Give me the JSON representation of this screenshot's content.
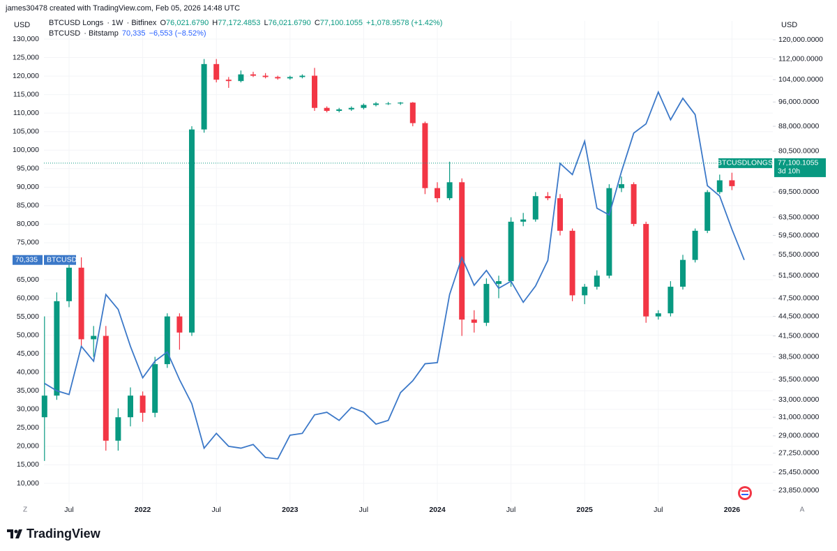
{
  "header": "james30478 created with TradingView.com, Feb 05, 2026 14:48 UTC",
  "brand": "TradingView",
  "ui": {
    "left_button": "Z",
    "right_button": "A"
  },
  "chart_data": {
    "type": "candlestick",
    "x": [
      "2021-05",
      "2021-06",
      "2021-07",
      "2021-08",
      "2021-09",
      "2021-10",
      "2021-11",
      "2021-12",
      "2022-01",
      "2022-02",
      "2022-03",
      "2022-04",
      "2022-05",
      "2022-06",
      "2022-07",
      "2022-08",
      "2022-09",
      "2022-10",
      "2022-11",
      "2022-12",
      "2023-01",
      "2023-02",
      "2023-03",
      "2023-04",
      "2023-05",
      "2023-06",
      "2023-07",
      "2023-08",
      "2023-09",
      "2023-10",
      "2023-11",
      "2023-12",
      "2024-01",
      "2024-02",
      "2024-03",
      "2024-04",
      "2024-05",
      "2024-06",
      "2024-07",
      "2024-08",
      "2024-09",
      "2024-10",
      "2024-11",
      "2024-12",
      "2025-01",
      "2025-02",
      "2025-03",
      "2025-04",
      "2025-05",
      "2025-06",
      "2025-07",
      "2025-08",
      "2025-09",
      "2025-10",
      "2025-11",
      "2025-12",
      "2026-01",
      "2026-02"
    ],
    "xticks": [
      {
        "value": "2021-07",
        "label": "Jul"
      },
      {
        "value": "2022-01",
        "label": "2022"
      },
      {
        "value": "2022-07",
        "label": "Jul"
      },
      {
        "value": "2023-01",
        "label": "2023"
      },
      {
        "value": "2023-07",
        "label": "Jul"
      },
      {
        "value": "2024-01",
        "label": "2024"
      },
      {
        "value": "2024-07",
        "label": "Jul"
      },
      {
        "value": "2025-01",
        "label": "2025"
      },
      {
        "value": "2025-07",
        "label": "Jul"
      },
      {
        "value": "2026-01",
        "label": "2026"
      }
    ],
    "ylabel": "USD",
    "y2label": "USD",
    "ylim": [
      4913,
      134900
    ],
    "yticks": [
      {
        "value": 10000,
        "label": "10,000"
      },
      {
        "value": 15000,
        "label": "15,000"
      },
      {
        "value": 20000,
        "label": "20,000"
      },
      {
        "value": 25000,
        "label": "25,000"
      },
      {
        "value": 30000,
        "label": "30,000"
      },
      {
        "value": 35000,
        "label": "35,000"
      },
      {
        "value": 40000,
        "label": "40,000"
      },
      {
        "value": 45000,
        "label": "45,000"
      },
      {
        "value": 50000,
        "label": "50,000"
      },
      {
        "value": 55000,
        "label": "55,000"
      },
      {
        "value": 60000,
        "label": "60,000"
      },
      {
        "value": 65000,
        "label": "65,000"
      },
      {
        "value": 75000,
        "label": "75,000"
      },
      {
        "value": 80000,
        "label": "80,000"
      },
      {
        "value": 85000,
        "label": "85,000"
      },
      {
        "value": 90000,
        "label": "90,000"
      },
      {
        "value": 95000,
        "label": "95,000"
      },
      {
        "value": 100000,
        "label": "100,000"
      },
      {
        "value": 105000,
        "label": "105,000"
      },
      {
        "value": 110000,
        "label": "110,000"
      },
      {
        "value": 115000,
        "label": "115,000"
      },
      {
        "value": 120000,
        "label": "120,000"
      },
      {
        "value": 125000,
        "label": "125,000"
      },
      {
        "value": 130000,
        "label": "130,000"
      }
    ],
    "y2lim": [
      22860,
      128400
    ],
    "y2_scale": "log",
    "y2ticks": [
      {
        "value": 23850,
        "label": "23,850.0000"
      },
      {
        "value": 25450,
        "label": "25,450.0000"
      },
      {
        "value": 27250,
        "label": "27,250.0000"
      },
      {
        "value": 29000,
        "label": "29,000.0000"
      },
      {
        "value": 31000,
        "label": "31,000.0000"
      },
      {
        "value": 33000,
        "label": "33,000.0000"
      },
      {
        "value": 35500,
        "label": "35,500.0000"
      },
      {
        "value": 38500,
        "label": "38,500.0000"
      },
      {
        "value": 41500,
        "label": "41,500.0000"
      },
      {
        "value": 44500,
        "label": "44,500.0000"
      },
      {
        "value": 47500,
        "label": "47,500.0000"
      },
      {
        "value": 51500,
        "label": "51,500.0000"
      },
      {
        "value": 55500,
        "label": "55,500.0000"
      },
      {
        "value": 59500,
        "label": "59,500.0000"
      },
      {
        "value": 63500,
        "label": "63,500.0000"
      },
      {
        "value": 69500,
        "label": "69,500.0000"
      },
      {
        "value": 80500,
        "label": "80,500.0000"
      },
      {
        "value": 88000,
        "label": "88,000.0000"
      },
      {
        "value": 96000,
        "label": "96,000.0000"
      },
      {
        "value": 104000,
        "label": "104,000.0000"
      },
      {
        "value": 112000,
        "label": "112,000.0000"
      },
      {
        "value": 120000,
        "label": "120,000.0000"
      }
    ],
    "grid": true,
    "series": [
      {
        "name": "BTCUSD Longs",
        "type": "candlestick",
        "axis": "y2",
        "interval": "1W",
        "exchange": "Bitfinex",
        "up_color": "#089981",
        "down_color": "#f23645",
        "open": [
          31000,
          33500,
          47000,
          53000,
          41000,
          41500,
          28500,
          31000,
          33500,
          31500,
          37500,
          44500,
          42000,
          87000,
          110000,
          104000,
          103500,
          106000,
          105500,
          105000,
          104500,
          105000,
          105500,
          94000,
          93000,
          93500,
          94000,
          95000,
          95500,
          95500,
          95800,
          89000,
          70500,
          68000,
          72000,
          44000,
          43500,
          50000,
          50500,
          62500,
          63000,
          68500,
          68000,
          60500,
          48000,
          49500,
          51500,
          70500,
          71500,
          62000,
          44500,
          45000,
          49500,
          54500,
          60500,
          69500,
          72500,
          76021.679
        ],
        "high": [
          44500,
          48500,
          54500,
          55000,
          43000,
          43000,
          32000,
          34500,
          34000,
          38500,
          45000,
          45000,
          88000,
          112000,
          112000,
          105000,
          107500,
          107000,
          106500,
          105500,
          105500,
          106000,
          108500,
          94500,
          94000,
          94500,
          95500,
          96000,
          96000,
          96000,
          96000,
          89500,
          72000,
          77500,
          73000,
          45500,
          51000,
          51500,
          63500,
          64500,
          69500,
          69500,
          69000,
          61000,
          50000,
          52500,
          71500,
          73500,
          72000,
          62500,
          45500,
          50500,
          55500,
          61000,
          70000,
          74000,
          74500,
          77172.4853
        ],
        "low": [
          26500,
          33000,
          46000,
          40000,
          38500,
          27500,
          27500,
          30000,
          30500,
          31000,
          37000,
          39500,
          41500,
          86000,
          103000,
          101000,
          103000,
          105000,
          104500,
          104000,
          104000,
          104500,
          93000,
          92500,
          92500,
          93000,
          93500,
          94500,
          95000,
          95000,
          88000,
          69000,
          67000,
          67500,
          41500,
          42000,
          43000,
          47500,
          49500,
          61500,
          62500,
          67500,
          59500,
          47000,
          46500,
          49000,
          51000,
          69500,
          61500,
          43500,
          44000,
          44500,
          49000,
          54000,
          60000,
          69000,
          70000,
          76021.679
        ],
        "close": [
          33500,
          47000,
          53000,
          41000,
          41500,
          28500,
          31000,
          33500,
          31500,
          37500,
          44500,
          42000,
          87000,
          110000,
          104000,
          103500,
          106000,
          105500,
          105000,
          104500,
          105000,
          105500,
          94000,
          93000,
          93500,
          94000,
          95000,
          95500,
          95500,
          95800,
          89000,
          70500,
          68000,
          72000,
          44000,
          43500,
          50000,
          50500,
          62500,
          63000,
          68500,
          68000,
          60500,
          48000,
          49500,
          51500,
          70500,
          71500,
          62000,
          44500,
          45000,
          49500,
          54500,
          60500,
          69500,
          72500,
          71000,
          77100.1055
        ],
        "ohlc_labels": [
          {
            "label": "O",
            "value": "76,021.6790"
          },
          {
            "label": "H",
            "value": "77,172.4853"
          },
          {
            "label": "L",
            "value": "76,021.6790"
          },
          {
            "label": "C",
            "value": "77,100.1055"
          }
        ],
        "change": "+1,078.9578 (+1.42%)",
        "price_tag": "BTCUSDLONGS",
        "last_label": "77,100.1055",
        "countdown": "3d 10h"
      },
      {
        "name": "BTCUSD",
        "type": "line",
        "axis": "y",
        "exchange": "Bitstamp",
        "color": "#3b78c8",
        "values": [
          37000,
          35000,
          34000,
          47000,
          43000,
          61000,
          57000,
          47000,
          38500,
          43000,
          45500,
          38000,
          31500,
          19500,
          23500,
          20000,
          19500,
          20500,
          17000,
          16600,
          23000,
          23500,
          28500,
          29200,
          27000,
          30500,
          29200,
          26000,
          27000,
          34500,
          37700,
          42300,
          42600,
          61000,
          71000,
          63500,
          67500,
          62700,
          64600,
          58900,
          63300,
          70200,
          96400,
          93400,
          102400,
          84300,
          82500,
          94200,
          104600,
          107100,
          115700,
          108200,
          114000,
          109600,
          90400,
          87600,
          78600,
          70335
        ],
        "last_label": "70,335",
        "change": "−6,553 (−8.52%)"
      }
    ]
  }
}
